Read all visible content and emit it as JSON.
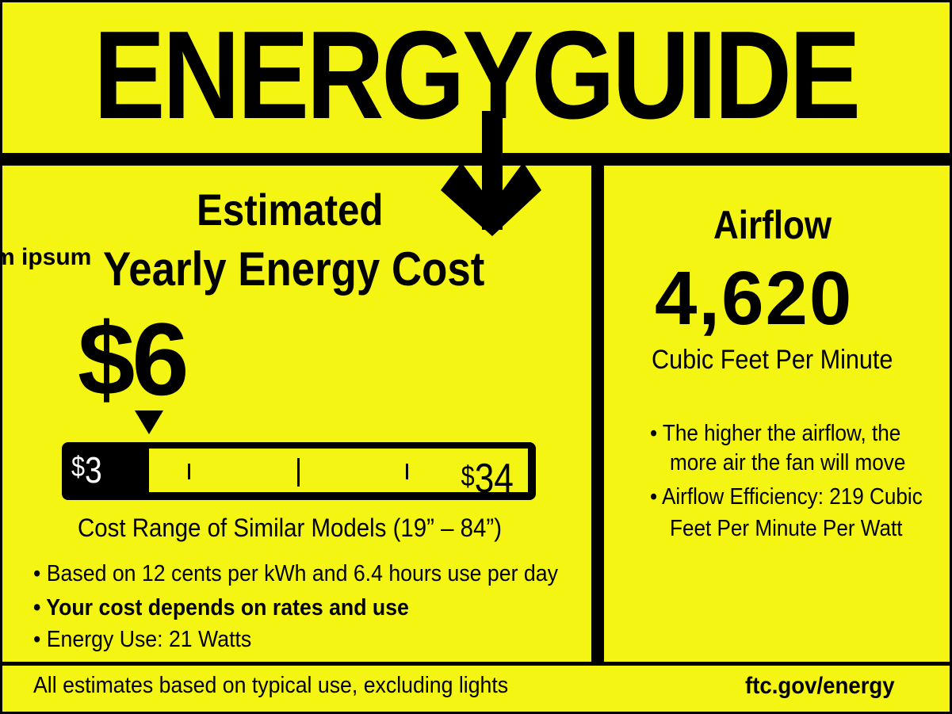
{
  "header": {
    "title": "ENERGYGUIDE"
  },
  "cost_panel": {
    "heading_line1": "Estimated",
    "heading_line2": "Yearly Energy Cost",
    "overflow_text": "m ipsum",
    "yearly_cost": "$6",
    "scale": {
      "low_symbol": "$",
      "low_value": "3",
      "high_symbol": "$",
      "high_value": "34",
      "marker_value": 6
    },
    "range_caption": "Cost Range of Similar Models (19” – 84”)",
    "bullets": [
      "• Based on 12 cents per kWh and 6.4 hours use per day",
      "• Your cost depends on rates and use",
      "• Energy Use:  21 Watts"
    ]
  },
  "airflow_panel": {
    "heading": "Airflow",
    "value": "4,620",
    "unit": "Cubic Feet Per Minute",
    "bullets": [
      "• The higher the airflow, the",
      "more air the fan will move",
      "• Airflow Efficiency: 219 Cubic",
      "Feet Per Minute Per Watt"
    ]
  },
  "footer": {
    "note": "All estimates based on typical use, excluding lights",
    "link": "ftc.gov/energy"
  },
  "colors": {
    "background": "#f5f514",
    "ink": "#000000"
  }
}
